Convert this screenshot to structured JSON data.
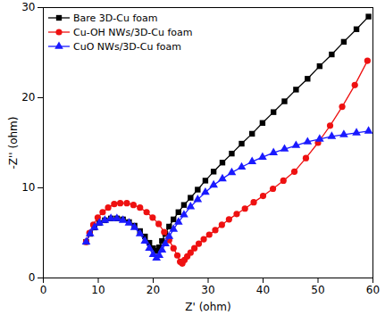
{
  "chart_data": {
    "type": "line",
    "xlabel": "Z' (ohm)",
    "ylabel": "-Z'' (ohm)",
    "xlim": [
      0,
      60
    ],
    "ylim": [
      0,
      30
    ],
    "xticks": [
      0,
      10,
      20,
      30,
      40,
      50,
      60
    ],
    "yticks": [
      0,
      10,
      20,
      30
    ],
    "legend": "top-left",
    "grid": false,
    "series": [
      {
        "name": "Bare 3D-Cu foam",
        "color": "#000000",
        "marker": "square",
        "x": [
          7.8,
          8.5,
          9.3,
          10.2,
          11.2,
          12.3,
          13.4,
          14.5,
          15.6,
          16.6,
          17.6,
          18.5,
          19.3,
          20.0,
          20.6,
          21.1,
          21.6,
          22.2,
          22.9,
          23.7,
          24.6,
          25.6,
          26.8,
          28.1,
          29.5,
          31.0,
          32.6,
          34.3,
          36.1,
          38.0,
          39.9,
          41.9,
          43.9,
          46.0,
          48.1,
          50.3,
          52.5,
          54.7,
          57.0,
          59.2
        ],
        "values": [
          4.0,
          4.9,
          5.6,
          6.1,
          6.4,
          6.6,
          6.6,
          6.5,
          6.2,
          5.8,
          5.2,
          4.6,
          3.9,
          3.3,
          3.0,
          3.4,
          4.1,
          4.9,
          5.7,
          6.5,
          7.3,
          8.1,
          8.9,
          9.8,
          10.8,
          11.8,
          12.8,
          13.8,
          14.9,
          16.0,
          17.2,
          18.4,
          19.6,
          20.9,
          22.1,
          23.5,
          24.8,
          26.2,
          27.6,
          29.0
        ]
      },
      {
        "name": "Cu-OH NWs/3D-Cu foam",
        "color": "#ee1111",
        "marker": "circle",
        "x": [
          7.8,
          8.4,
          9.1,
          9.9,
          10.8,
          11.8,
          12.9,
          14.0,
          15.2,
          16.4,
          17.6,
          18.8,
          19.9,
          21.0,
          22.0,
          22.9,
          23.7,
          24.4,
          24.9,
          25.3,
          25.7,
          26.2,
          26.8,
          27.5,
          28.3,
          29.2,
          30.2,
          31.3,
          32.5,
          33.8,
          35.2,
          36.7,
          38.3,
          40.0,
          41.8,
          43.7,
          45.7,
          47.8,
          50.0,
          52.2,
          54.4,
          56.7,
          59.0
        ],
        "values": [
          4.0,
          5.0,
          5.9,
          6.7,
          7.3,
          7.8,
          8.2,
          8.3,
          8.3,
          8.1,
          7.8,
          7.3,
          6.7,
          6.0,
          5.1,
          4.2,
          3.3,
          2.5,
          1.8,
          1.6,
          2.0,
          2.4,
          2.8,
          3.3,
          3.8,
          4.3,
          4.8,
          5.3,
          5.9,
          6.5,
          7.1,
          7.7,
          8.4,
          9.1,
          9.9,
          10.8,
          11.8,
          13.3,
          15.0,
          16.9,
          19.0,
          21.4,
          24.1
        ]
      },
      {
        "name": "CuO NWs/3D-Cu foam",
        "color": "#1a1aff",
        "marker": "triangle",
        "x": [
          7.8,
          8.5,
          9.3,
          10.2,
          11.2,
          12.3,
          13.4,
          14.5,
          15.6,
          16.6,
          17.6,
          18.5,
          19.3,
          20.0,
          20.6,
          21.1,
          21.6,
          22.2,
          22.9,
          23.7,
          24.6,
          25.6,
          26.8,
          28.1,
          29.5,
          31.0,
          32.6,
          34.3,
          36.1,
          38.0,
          39.9,
          41.9,
          43.9,
          46.0,
          48.1,
          50.3,
          52.5,
          54.7,
          57.0,
          59.2
        ],
        "values": [
          4.0,
          4.9,
          5.6,
          6.1,
          6.4,
          6.6,
          6.6,
          6.4,
          6.1,
          5.6,
          4.9,
          4.1,
          3.3,
          2.6,
          2.2,
          2.5,
          3.1,
          3.8,
          4.6,
          5.4,
          6.2,
          7.0,
          7.9,
          8.7,
          9.5,
          10.3,
          11.0,
          11.7,
          12.3,
          12.9,
          13.4,
          13.9,
          14.3,
          14.7,
          15.1,
          15.4,
          15.7,
          15.9,
          16.1,
          16.3
        ]
      }
    ]
  }
}
